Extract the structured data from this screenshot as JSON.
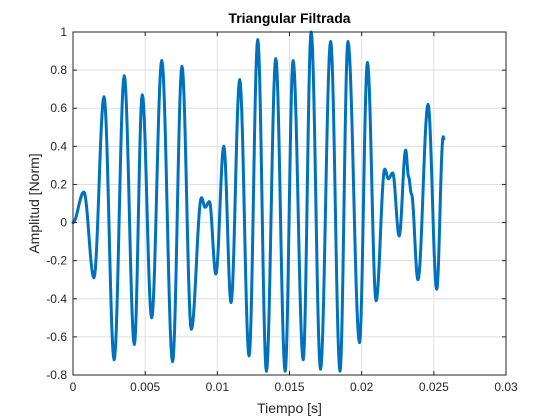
{
  "chart_data": {
    "type": "line",
    "title": "Triangular Filtrada",
    "xlabel": "Tiempo [s]",
    "ylabel": "Amplitud [Norm]",
    "xlim": [
      0,
      0.03
    ],
    "ylim": [
      -0.8,
      1
    ],
    "xticks": [
      0,
      0.005,
      0.01,
      0.015,
      0.02,
      0.025,
      0.03
    ],
    "xtick_labels": [
      "0",
      "0.005",
      "0.01",
      "0.015",
      "0.02",
      "0.025",
      "0.03"
    ],
    "yticks": [
      -0.8,
      -0.6,
      -0.4,
      -0.2,
      0,
      0.2,
      0.4,
      0.6,
      0.8,
      1
    ],
    "ytick_labels": [
      "-0.8",
      "-0.6",
      "-0.4",
      "-0.2",
      "0",
      "0.2",
      "0.4",
      "0.6",
      "0.8",
      "1"
    ],
    "grid": true,
    "series": [
      {
        "name": "Triangular Filtrada",
        "color": "#0072BD",
        "extrema": [
          [
            0,
            0
          ],
          [
            0.00075,
            0.16
          ],
          [
            0.00145,
            -0.29
          ],
          [
            0.00215,
            0.66
          ],
          [
            0.00285,
            -0.72
          ],
          [
            0.00355,
            0.77
          ],
          [
            0.00425,
            -0.64
          ],
          [
            0.0048,
            0.67
          ],
          [
            0.00545,
            -0.5
          ],
          [
            0.00615,
            0.85
          ],
          [
            0.0069,
            -0.73
          ],
          [
            0.00755,
            0.82
          ],
          [
            0.0082,
            -0.56
          ],
          [
            0.0089,
            0.13
          ],
          [
            0.00915,
            0.08
          ],
          [
            0.00945,
            0.11
          ],
          [
            0.0099,
            -0.27
          ],
          [
            0.01045,
            0.4
          ],
          [
            0.01095,
            -0.42
          ],
          [
            0.01155,
            0.75
          ],
          [
            0.0122,
            -0.7
          ],
          [
            0.0128,
            0.96
          ],
          [
            0.0134,
            -0.78
          ],
          [
            0.01405,
            0.86
          ],
          [
            0.0147,
            -0.78
          ],
          [
            0.01525,
            0.85
          ],
          [
            0.01595,
            -0.72
          ],
          [
            0.0165,
            1.0
          ],
          [
            0.01715,
            -0.77
          ],
          [
            0.01785,
            0.95
          ],
          [
            0.0185,
            -0.78
          ],
          [
            0.01905,
            0.95
          ],
          [
            0.01985,
            -0.63
          ],
          [
            0.0204,
            0.84
          ],
          [
            0.021,
            -0.41
          ],
          [
            0.0216,
            0.28
          ],
          [
            0.02185,
            0.23
          ],
          [
            0.02215,
            0.26
          ],
          [
            0.0226,
            -0.07
          ],
          [
            0.02305,
            0.38
          ],
          [
            0.02325,
            0.24
          ],
          [
            0.02345,
            0.15
          ],
          [
            0.0239,
            -0.3
          ],
          [
            0.0246,
            0.62
          ],
          [
            0.0252,
            -0.35
          ],
          [
            0.02565,
            0.45
          ],
          [
            0.0257,
            0.44
          ]
        ]
      }
    ]
  }
}
